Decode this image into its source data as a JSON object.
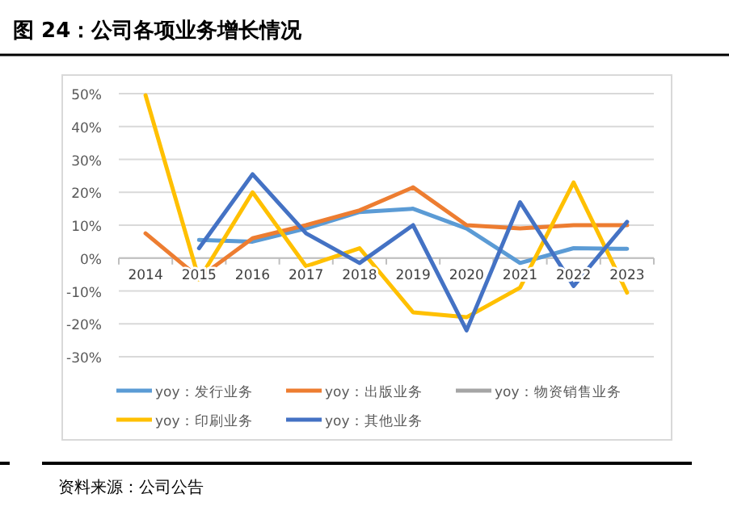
{
  "chart_data": {
    "type": "line",
    "title": "图 24：公司各项业务增长情况",
    "categories": [
      "2014",
      "2015",
      "2016",
      "2017",
      "2018",
      "2019",
      "2020",
      "2021",
      "2022",
      "2023"
    ],
    "series": [
      {
        "name": "yoy：发行业务",
        "color": "#5b9bd5",
        "values": [
          null,
          5.5,
          5,
          9,
          14,
          15,
          9,
          -1.5,
          3,
          2.8
        ]
      },
      {
        "name": "yoy：出版业务",
        "color": "#ed7d31",
        "values": [
          7.5,
          -6,
          6,
          10,
          14.5,
          21.5,
          10,
          9,
          10,
          10
        ]
      },
      {
        "name": "yoy：物资销售业务",
        "color": "#a5a5a5",
        "values": [
          null,
          null,
          null,
          null,
          null,
          null,
          null,
          null,
          null,
          null
        ]
      },
      {
        "name": "yoy：印刷业务",
        "color": "#ffc000",
        "values": [
          49.5,
          -6.5,
          20,
          -2.5,
          3,
          -16.5,
          -18,
          -9,
          23,
          -10.5
        ]
      },
      {
        "name": "yoy：其他业务",
        "color": "#4472c4",
        "values": [
          null,
          3,
          25.5,
          7.5,
          -1.5,
          10,
          -22,
          17,
          -8.5,
          11
        ]
      }
    ],
    "ylim": [
      -30,
      50
    ],
    "yticks": [
      {
        "value": -30,
        "label": "-30%"
      },
      {
        "value": -20,
        "label": "-20%"
      },
      {
        "value": -10,
        "label": "-10%"
      },
      {
        "value": 0,
        "label": "0%"
      },
      {
        "value": 10,
        "label": "10%"
      },
      {
        "value": 20,
        "label": "20%"
      },
      {
        "value": 30,
        "label": "30%"
      },
      {
        "value": 40,
        "label": "40%"
      },
      {
        "value": 50,
        "label": "50%"
      }
    ],
    "grid": "y",
    "legend": "bottom",
    "marker": "none",
    "line_style": "solid",
    "annotations": [
      "资料来源：公司公告"
    ]
  }
}
